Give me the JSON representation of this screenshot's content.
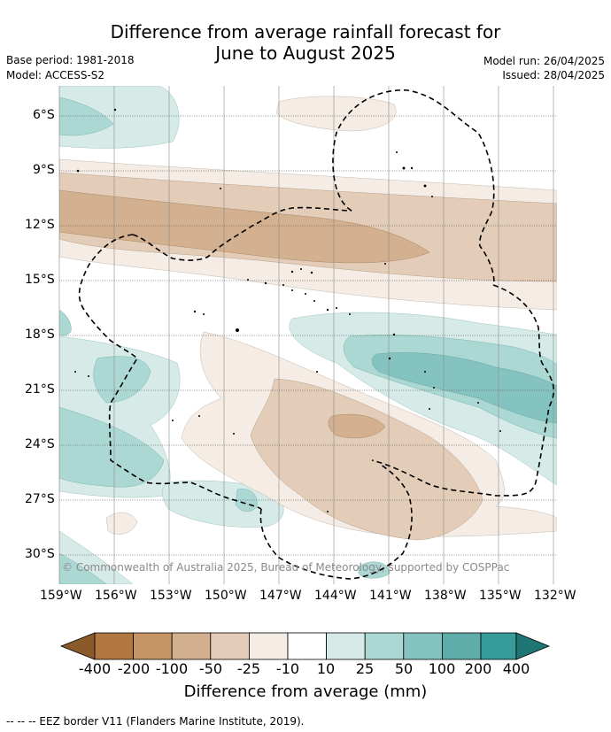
{
  "title_line1": "Difference from average rainfall forecast for",
  "title_line2": "June to August 2025",
  "base_period": "Base period: 1981-2018",
  "model": "Model: ACCESS-S2",
  "model_run": "Model run: 26/04/2025",
  "issued": "Issued: 28/04/2025",
  "lat_labels": [
    "6°S",
    "9°S",
    "12°S",
    "15°S",
    "18°S",
    "21°S",
    "24°S",
    "27°S",
    "30°S"
  ],
  "lon_labels": [
    "159°W",
    "156°W",
    "153°W",
    "150°W",
    "147°W",
    "144°W",
    "141°W",
    "138°W",
    "135°W",
    "132°W"
  ],
  "credit": "© Commonwealth of Australia 2025, Bureau of Meteorology, supported by COSPPac",
  "colorbar": {
    "title": "Difference from average (mm)",
    "ticks": [
      "-400",
      "-200",
      "-100",
      "-50",
      "-25",
      "-10",
      "10",
      "25",
      "50",
      "100",
      "200",
      "400"
    ],
    "colors": [
      "#8b5a2b",
      "#b07840",
      "#c49366",
      "#d3b08f",
      "#e3cdb8",
      "#f4ece5",
      "#ffffff",
      "#d6ebe8",
      "#acd8d4",
      "#85c3c0",
      "#5fadab",
      "#369a98",
      "#1f7775"
    ]
  },
  "footnote": "-- -- -- EEZ border V11 (Flanders Marine Institute, 2019)."
}
